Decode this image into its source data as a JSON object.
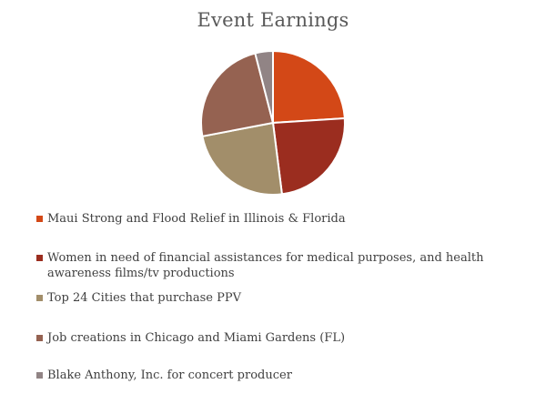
{
  "chart_data": {
    "type": "pie",
    "title": "Event Earnings",
    "categories": [
      "Maui Strong and Flood Relief in Illinois & Florida",
      "Women in need of financial assistances for medical purposes, and health awareness films/tv productions",
      "Top 24 Cities that purchase PPV",
      "Job creations in Chicago and Miami Gardens (FL)",
      "Blake Anthony, Inc. for concert producer"
    ],
    "values": [
      24,
      24,
      24,
      24,
      4
    ],
    "colors": [
      "#D34817",
      "#9B2D1F",
      "#A28E6A",
      "#956251",
      "#918485"
    ],
    "legend_position": "bottom"
  }
}
